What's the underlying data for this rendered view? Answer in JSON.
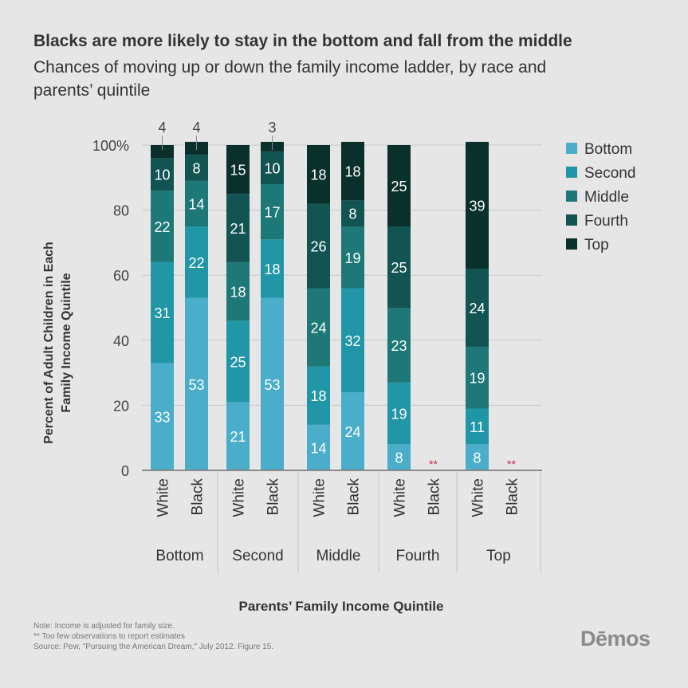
{
  "header": {
    "title": "Blacks are more likely to stay in the bottom and fall from the middle",
    "subtitle": "Chances of moving up or down the family income ladder, by race and parents’ quintile"
  },
  "notes": [
    "Note: Income is adjusted for family size.",
    "** Too few observations to report estimates",
    "Source: Pew, \"Pursuing the American Dream,\" July 2012. Figure 15."
  ],
  "logo": "Dēmos",
  "colors": {
    "Bottom": "#4aadc9",
    "Second": "#2196a6",
    "Middle": "#1d7877",
    "Fourth": "#115451",
    "Top": "#0a302c",
    "missing": "#d6243d",
    "grid": "#c9c9c9"
  },
  "chart_data": {
    "type": "bar",
    "stacked": true,
    "xlabel": "Parents’ Family Income Quintile",
    "ylabel": "Percent of Adult Children in Each Family Income Quintile",
    "ylim": [
      0,
      100
    ],
    "yticks": [
      "0",
      "20",
      "40",
      "60",
      "80",
      "100%"
    ],
    "grid": true,
    "legend_position": "right",
    "series_names": [
      "Bottom",
      "Second",
      "Middle",
      "Fourth",
      "Top"
    ],
    "groups": [
      {
        "label": "Bottom",
        "bars": [
          {
            "label": "White",
            "values": [
              33,
              31,
              22,
              10,
              4
            ]
          },
          {
            "label": "Black",
            "values": [
              53,
              22,
              14,
              8,
              4
            ]
          }
        ]
      },
      {
        "label": "Second",
        "bars": [
          {
            "label": "White",
            "values": [
              21,
              25,
              18,
              21,
              15
            ]
          },
          {
            "label": "Black",
            "values": [
              53,
              18,
              17,
              10,
              3
            ]
          }
        ]
      },
      {
        "label": "Middle",
        "bars": [
          {
            "label": "White",
            "values": [
              14,
              18,
              24,
              26,
              18
            ]
          },
          {
            "label": "Black",
            "values": [
              24,
              32,
              19,
              8,
              18
            ]
          }
        ]
      },
      {
        "label": "Fourth",
        "bars": [
          {
            "label": "White",
            "values": [
              8,
              19,
              23,
              25,
              25
            ]
          },
          {
            "label": "Black",
            "values": null,
            "missing_label": "**"
          }
        ]
      },
      {
        "label": "Top",
        "bars": [
          {
            "label": "White",
            "values": [
              8,
              11,
              19,
              24,
              39
            ]
          },
          {
            "label": "Black",
            "values": null,
            "missing_label": "**"
          }
        ]
      }
    ]
  }
}
